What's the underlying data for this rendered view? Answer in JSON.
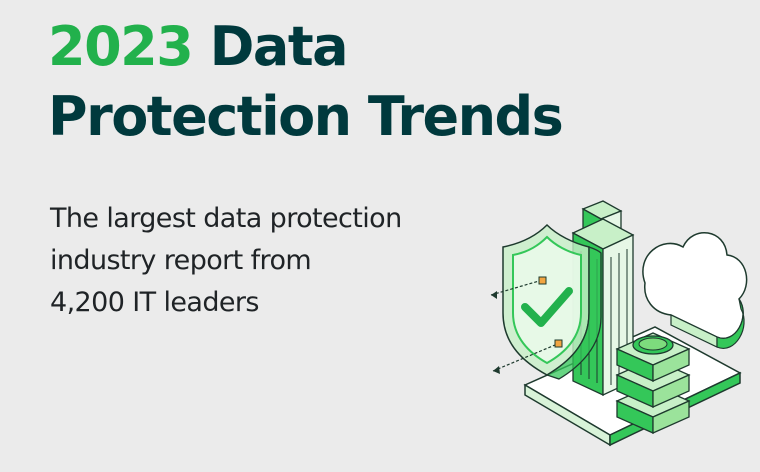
{
  "hero": {
    "title_year": "2023",
    "title_rest_line1": "Data",
    "title_line2": "Protection Trends",
    "subtitle_line1": "The largest data protection",
    "subtitle_line2": "industry report from",
    "subtitle_line3": "4,200 IT leaders"
  },
  "illustration": {
    "icons": [
      "shield-check-icon",
      "building-icon",
      "cloud-icon",
      "server-stack-icon"
    ]
  },
  "colors": {
    "background": "#ebebeb",
    "title_dark": "#00393d",
    "title_green": "#22b14c",
    "body_text": "#1f2326",
    "accent_green": "#34c759",
    "light_green": "#c8f0c8",
    "outline": "#1e3a2e"
  }
}
